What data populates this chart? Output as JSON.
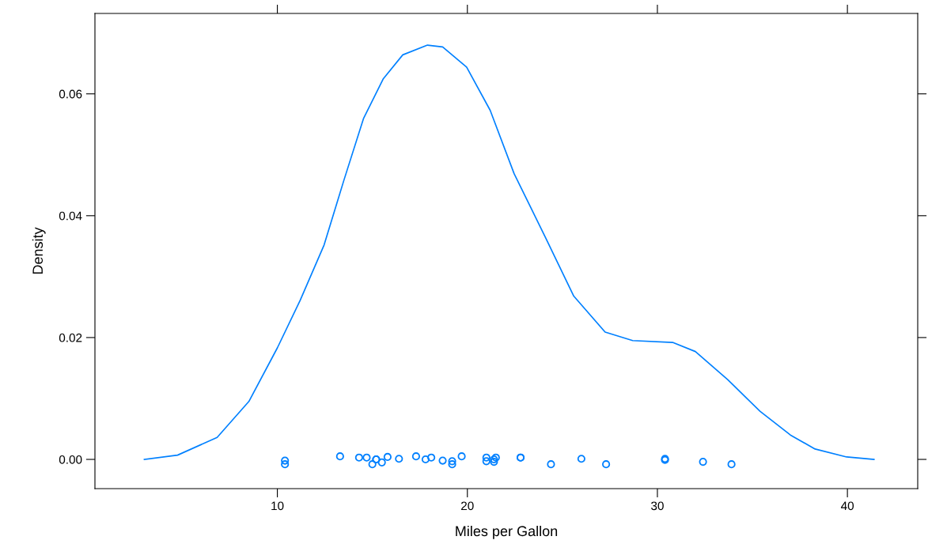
{
  "chart_data": {
    "type": "line",
    "xlabel": "Miles per Gallon",
    "ylabel": "Density",
    "xlim": [
      0.4,
      43.7
    ],
    "ylim": [
      -0.0048,
      0.0732
    ],
    "xticks": [
      10,
      20,
      30,
      40
    ],
    "yticks": [
      {
        "value": 0,
        "label": "0.00"
      },
      {
        "value": 0.02,
        "label": "0.02"
      },
      {
        "value": 0.04,
        "label": "0.04"
      },
      {
        "value": 0.06,
        "label": "0.06"
      }
    ],
    "grid": false,
    "legend": false,
    "series": [
      {
        "color": "#0080ff",
        "marker": "none",
        "line_style": "solid",
        "x": [
          3.0,
          4.75,
          6.83,
          8.5,
          10,
          11.2,
          12.46,
          13.5,
          14.54,
          15.58,
          16.6,
          17.9,
          18.7,
          19.96,
          21.2,
          22.46,
          24.1,
          25.6,
          27.25,
          28.7,
          30.8,
          32.0,
          33.7,
          35.4,
          37.0,
          38.3,
          39.96,
          41.4
        ],
        "values": [
          0,
          0.0007,
          0.0036,
          0.0095,
          0.0183,
          0.0261,
          0.0352,
          0.0458,
          0.056,
          0.0625,
          0.0664,
          0.068,
          0.0677,
          0.0644,
          0.0573,
          0.0469,
          0.0365,
          0.0268,
          0.0209,
          0.0195,
          0.0192,
          0.0177,
          0.0131,
          0.0079,
          0.004,
          0.0017,
          0.0004,
          0
        ]
      },
      {
        "type": "scatter",
        "color": "#0080ff",
        "marker": "circle",
        "x": [
          10.4,
          10.4,
          13.3,
          14.3,
          14.7,
          15.0,
          15.2,
          15.2,
          15.5,
          15.8,
          16.4,
          17.3,
          17.8,
          18.1,
          18.7,
          19.2,
          19.2,
          19.7,
          21.0,
          21.0,
          21.4,
          21.4,
          21.5,
          22.8,
          22.8,
          24.4,
          26.0,
          27.3,
          30.4,
          30.4,
          32.4,
          33.9
        ],
        "values": [
          -0.0002,
          -0.0008,
          0.0005,
          0.0003,
          0.0003,
          -0.0008,
          0,
          0,
          -0.0005,
          0.0004,
          0.0001,
          0.0005,
          0,
          0.0003,
          -0.0002,
          -0.0003,
          -0.0008,
          0.0005,
          0.0003,
          -0.0003,
          0,
          -0.0004,
          0.0003,
          0.0003,
          0.0003,
          -0.0008,
          0.0001,
          -0.0008,
          0.0001,
          -0.0001,
          -0.0004,
          -0.0008
        ]
      }
    ]
  }
}
